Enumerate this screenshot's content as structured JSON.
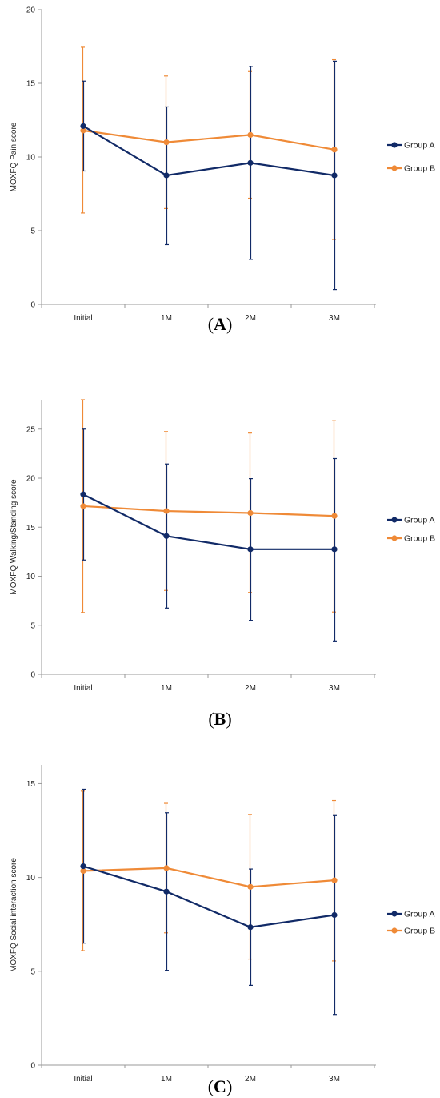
{
  "colors": {
    "group_a": "#112a67",
    "group_b": "#ef8a37"
  },
  "chart_data": [
    {
      "type": "line",
      "panel": "A",
      "ylabel": "MOXFQ Pain score",
      "ylim": [
        0,
        20
      ],
      "yticks": [
        0,
        5,
        10,
        15,
        20
      ],
      "categories": [
        "Initial",
        "1M",
        "2M",
        "3M"
      ],
      "legend_position": "right",
      "series": [
        {
          "name": "Group A",
          "values": [
            12.1,
            8.75,
            9.6,
            8.75
          ],
          "err_low": [
            9.05,
            4.05,
            3.05,
            1.0
          ],
          "err_high": [
            15.15,
            13.4,
            16.15,
            16.5
          ]
        },
        {
          "name": "Group B",
          "values": [
            11.8,
            11.0,
            11.5,
            10.5
          ],
          "err_low": [
            6.2,
            6.5,
            7.2,
            4.4
          ],
          "err_high": [
            17.45,
            15.5,
            15.8,
            16.6
          ]
        }
      ]
    },
    {
      "type": "line",
      "panel": "B",
      "ylabel": "MOXFQ Walking/Standing score",
      "ylim": [
        0,
        28
      ],
      "yticks": [
        0,
        5,
        10,
        15,
        20,
        25
      ],
      "categories": [
        "Initial",
        "1M",
        "2M",
        "3M"
      ],
      "legend_position": "right",
      "series": [
        {
          "name": "Group A",
          "values": [
            18.35,
            14.1,
            12.75,
            12.75
          ],
          "err_low": [
            11.65,
            6.75,
            5.5,
            3.4
          ],
          "err_high": [
            25.0,
            21.45,
            19.95,
            22.0
          ]
        },
        {
          "name": "Group B",
          "values": [
            17.15,
            16.65,
            16.45,
            16.15
          ],
          "err_low": [
            6.3,
            8.55,
            8.35,
            6.35
          ],
          "err_high": [
            28.0,
            24.75,
            24.6,
            25.9
          ]
        }
      ]
    },
    {
      "type": "line",
      "panel": "C",
      "ylabel": "MOXFQ Social interaction score",
      "ylim": [
        0,
        16
      ],
      "yticks": [
        0,
        5,
        10,
        15
      ],
      "categories": [
        "Initial",
        "1M",
        "2M",
        "3M"
      ],
      "legend_position": "right",
      "series": [
        {
          "name": "Group A",
          "values": [
            10.6,
            9.25,
            7.35,
            8.0
          ],
          "err_low": [
            6.5,
            5.05,
            4.25,
            2.7
          ],
          "err_high": [
            14.7,
            13.45,
            10.45,
            13.3
          ]
        },
        {
          "name": "Group B",
          "values": [
            10.35,
            10.5,
            9.5,
            9.85
          ],
          "err_low": [
            6.1,
            7.05,
            5.65,
            5.55
          ],
          "err_high": [
            14.6,
            13.95,
            13.35,
            14.1
          ]
        }
      ]
    }
  ],
  "captions": {
    "a": "A",
    "b": "B",
    "c": "C"
  }
}
